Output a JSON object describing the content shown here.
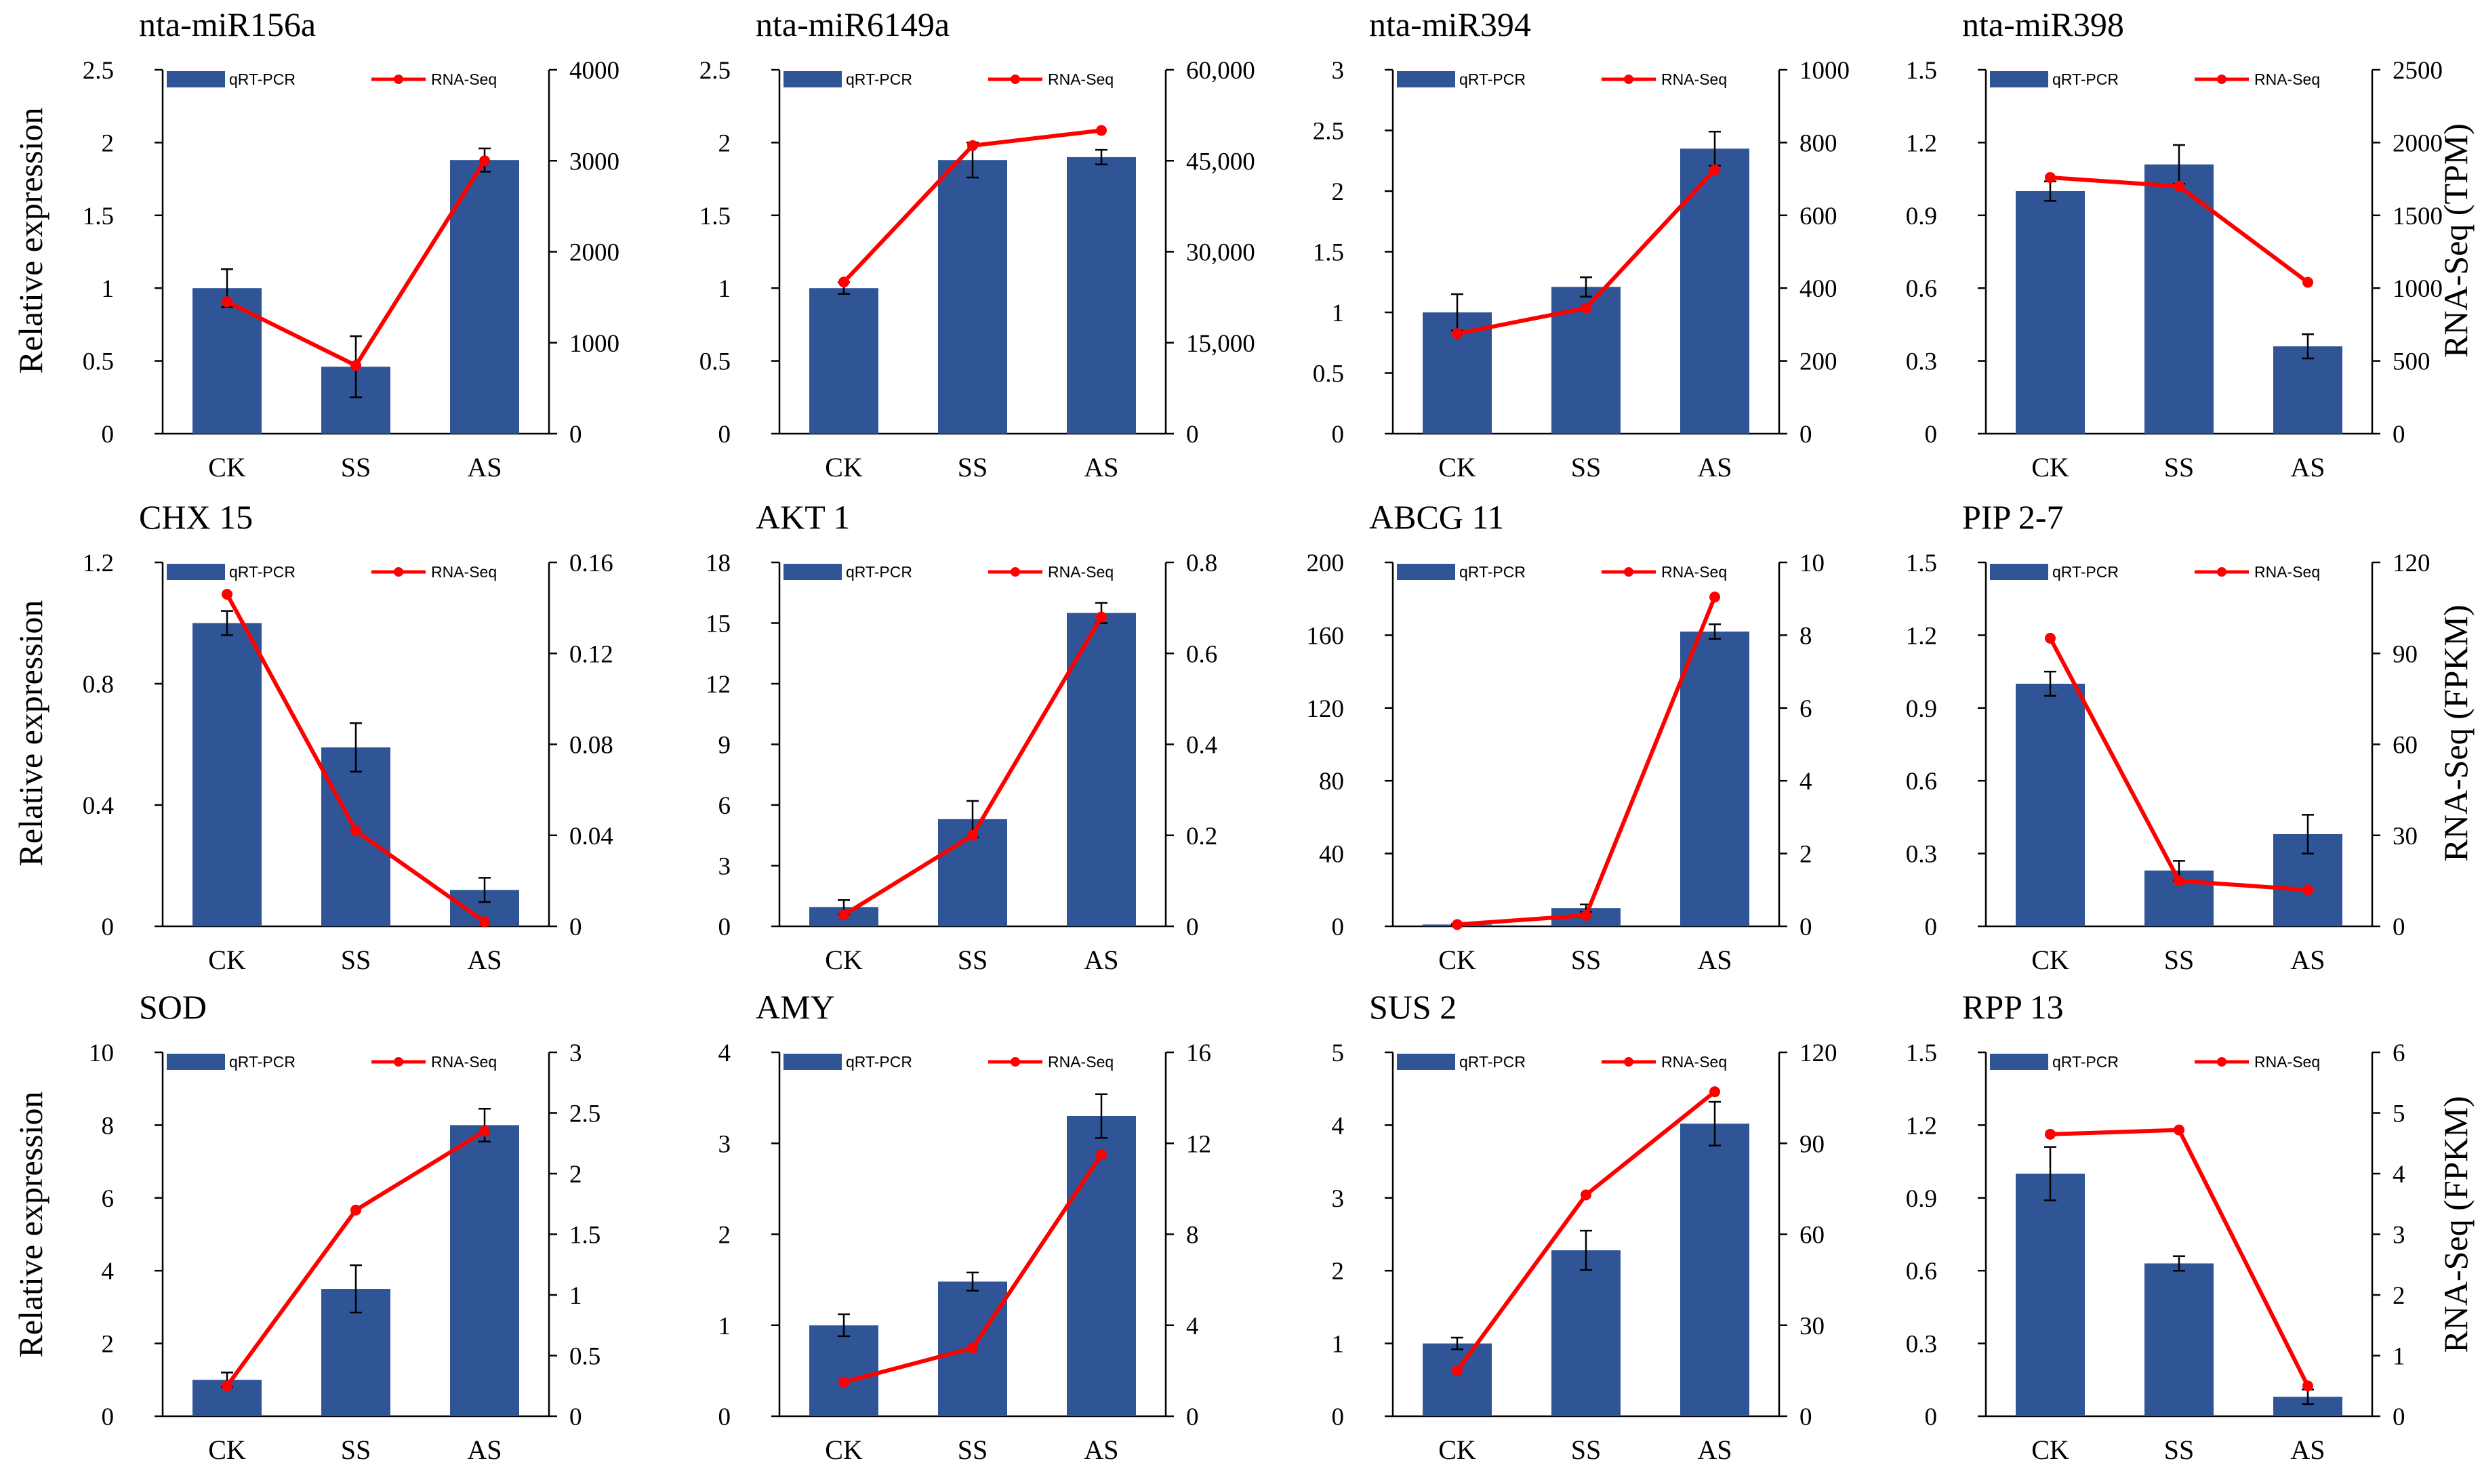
{
  "figure": {
    "categories": [
      "CK",
      "SS",
      "AS"
    ],
    "legend": {
      "bar_label": "qRT-PCR",
      "line_label": "RNA-Seq"
    },
    "colors": {
      "bar": "#2F5597",
      "line": "#FF0000"
    },
    "left_axis_label": "Relative expression",
    "right_axis_labels": [
      "RNA-Seq (TPM)",
      "RNA-Seq (FPKM)",
      "RNA-Seq (FPKM)"
    ]
  },
  "chart_data": [
    {
      "type": "bar",
      "title": "nta-miR156a",
      "categories": [
        "CK",
        "SS",
        "AS"
      ],
      "series": [
        {
          "name": "qRT-PCR",
          "axis": "left",
          "values": [
            1.0,
            0.46,
            1.88
          ],
          "errors": [
            0.13,
            0.21,
            0.08
          ]
        },
        {
          "name": "RNA-Seq",
          "axis": "right",
          "type": "line",
          "values": [
            1450,
            750,
            3000
          ]
        }
      ],
      "ylim_left": [
        0,
        2.5
      ],
      "yticks_left": [
        0,
        0.5,
        1,
        1.5,
        2,
        2.5
      ],
      "yticks_left_labels": [
        "0",
        "0.5",
        "1",
        "1.5",
        "2",
        "2.5"
      ],
      "ylim_right": [
        0,
        4000
      ],
      "yticks_right": [
        0,
        1000,
        2000,
        3000,
        4000
      ],
      "yticks_right_labels": [
        "0",
        "1000",
        "2000",
        "3000",
        "4000"
      ]
    },
    {
      "type": "bar",
      "title": "nta-miR6149a",
      "categories": [
        "CK",
        "SS",
        "AS"
      ],
      "series": [
        {
          "name": "qRT-PCR",
          "axis": "left",
          "values": [
            1.0,
            1.88,
            1.9
          ],
          "errors": [
            0.04,
            0.12,
            0.05
          ]
        },
        {
          "name": "RNA-Seq",
          "axis": "right",
          "type": "line",
          "values": [
            25000,
            47500,
            50000
          ]
        }
      ],
      "ylim_left": [
        0,
        2.5
      ],
      "yticks_left": [
        0,
        0.5,
        1,
        1.5,
        2,
        2.5
      ],
      "yticks_left_labels": [
        "0",
        "0.5",
        "1",
        "1.5",
        "2",
        "2.5"
      ],
      "ylim_right": [
        0,
        60000
      ],
      "yticks_right": [
        0,
        15000,
        30000,
        45000,
        60000
      ],
      "yticks_right_labels": [
        "0",
        "15,000",
        "30,000",
        "45,000",
        "60,000"
      ]
    },
    {
      "type": "bar",
      "title": "nta-miR394",
      "categories": [
        "CK",
        "SS",
        "AS"
      ],
      "series": [
        {
          "name": "qRT-PCR",
          "axis": "left",
          "values": [
            1.0,
            1.21,
            2.35
          ],
          "errors": [
            0.15,
            0.08,
            0.14
          ]
        },
        {
          "name": "RNA-Seq",
          "axis": "right",
          "type": "line",
          "values": [
            275,
            345,
            725
          ]
        }
      ],
      "ylim_left": [
        0,
        3
      ],
      "yticks_left": [
        0,
        0.5,
        1,
        1.5,
        2,
        2.5,
        3
      ],
      "yticks_left_labels": [
        "0",
        "0.5",
        "1",
        "1.5",
        "2",
        "2.5",
        "3"
      ],
      "ylim_right": [
        0,
        1000
      ],
      "yticks_right": [
        0,
        200,
        400,
        600,
        800,
        1000
      ],
      "yticks_right_labels": [
        "0",
        "200",
        "400",
        "600",
        "800",
        "1000"
      ]
    },
    {
      "type": "bar",
      "title": "nta-miR398",
      "categories": [
        "CK",
        "SS",
        "AS"
      ],
      "series": [
        {
          "name": "qRT-PCR",
          "axis": "left",
          "values": [
            1.0,
            1.11,
            0.36
          ],
          "errors": [
            0.04,
            0.08,
            0.05
          ]
        },
        {
          "name": "RNA-Seq",
          "axis": "right",
          "type": "line",
          "values": [
            1760,
            1700,
            1040
          ]
        }
      ],
      "ylim_left": [
        0,
        1.5
      ],
      "yticks_left": [
        0,
        0.3,
        0.6,
        0.9,
        1.2,
        1.5
      ],
      "yticks_left_labels": [
        "0",
        "0.3",
        "0.6",
        "0.9",
        "1.2",
        "1.5"
      ],
      "ylim_right": [
        0,
        2500
      ],
      "yticks_right": [
        0,
        500,
        1000,
        1500,
        2000,
        2500
      ],
      "yticks_right_labels": [
        "0",
        "500",
        "1000",
        "1500",
        "2000",
        "2500"
      ]
    },
    {
      "type": "bar",
      "title": "CHX 15",
      "categories": [
        "CK",
        "SS",
        "AS"
      ],
      "series": [
        {
          "name": "qRT-PCR",
          "axis": "left",
          "values": [
            1.0,
            0.59,
            0.12
          ],
          "errors": [
            0.04,
            0.08,
            0.04
          ]
        },
        {
          "name": "RNA-Seq",
          "axis": "right",
          "type": "line",
          "values": [
            0.146,
            0.042,
            0.002
          ]
        }
      ],
      "ylim_left": [
        0,
        1.2
      ],
      "yticks_left": [
        0,
        0.4,
        0.8,
        1.2
      ],
      "yticks_left_labels": [
        "0",
        "0.4",
        "0.8",
        "1.2"
      ],
      "ylim_right": [
        0,
        0.16
      ],
      "yticks_right": [
        0,
        0.04,
        0.08,
        0.12,
        0.16
      ],
      "yticks_right_labels": [
        "0",
        "0.04",
        "0.08",
        "0.12",
        "0.16"
      ]
    },
    {
      "type": "bar",
      "title": "AKT 1",
      "categories": [
        "CK",
        "SS",
        "AS"
      ],
      "series": [
        {
          "name": "qRT-PCR",
          "axis": "left",
          "values": [
            0.95,
            5.3,
            15.5
          ],
          "errors": [
            0.35,
            0.9,
            0.5
          ]
        },
        {
          "name": "RNA-Seq",
          "axis": "right",
          "type": "line",
          "values": [
            0.025,
            0.2,
            0.68
          ]
        }
      ],
      "ylim_left": [
        0,
        18
      ],
      "yticks_left": [
        0,
        3,
        6,
        9,
        12,
        15,
        18
      ],
      "yticks_left_labels": [
        "0",
        "3",
        "6",
        "9",
        "12",
        "15",
        "18"
      ],
      "ylim_right": [
        0,
        0.8
      ],
      "yticks_right": [
        0,
        0.2,
        0.4,
        0.6,
        0.8
      ],
      "yticks_right_labels": [
        "0",
        "0.2",
        "0.4",
        "0.6",
        "0.8"
      ]
    },
    {
      "type": "bar",
      "title": "ABCG 11",
      "categories": [
        "CK",
        "SS",
        "AS"
      ],
      "series": [
        {
          "name": "qRT-PCR",
          "axis": "left",
          "values": [
            1.0,
            10.0,
            162
          ],
          "errors": [
            0.3,
            2.0,
            4.0
          ]
        },
        {
          "name": "RNA-Seq",
          "axis": "right",
          "type": "line",
          "values": [
            0.05,
            0.3,
            9.05
          ]
        }
      ],
      "ylim_left": [
        0,
        200
      ],
      "yticks_left": [
        0,
        40,
        80,
        120,
        160,
        200
      ],
      "yticks_left_labels": [
        "0",
        "40",
        "80",
        "120",
        "160",
        "200"
      ],
      "ylim_right": [
        0,
        10
      ],
      "yticks_right": [
        0,
        2,
        4,
        6,
        8,
        10
      ],
      "yticks_right_labels": [
        "0",
        "2",
        "4",
        "6",
        "8",
        "10"
      ]
    },
    {
      "type": "bar",
      "title": "PIP 2-7",
      "categories": [
        "CK",
        "SS",
        "AS"
      ],
      "series": [
        {
          "name": "qRT-PCR",
          "axis": "left",
          "values": [
            1.0,
            0.23,
            0.38
          ],
          "errors": [
            0.05,
            0.04,
            0.08
          ]
        },
        {
          "name": "RNA-Seq",
          "axis": "right",
          "type": "line",
          "values": [
            95,
            15,
            12
          ]
        }
      ],
      "ylim_left": [
        0,
        1.5
      ],
      "yticks_left": [
        0,
        0.3,
        0.6,
        0.9,
        1.2,
        1.5
      ],
      "yticks_left_labels": [
        "0",
        "0.3",
        "0.6",
        "0.9",
        "1.2",
        "1.5"
      ],
      "ylim_right": [
        0,
        120
      ],
      "yticks_right": [
        0,
        30,
        60,
        90,
        120
      ],
      "yticks_right_labels": [
        "0",
        "30",
        "60",
        "90",
        "120"
      ]
    },
    {
      "type": "bar",
      "title": "SOD",
      "categories": [
        "CK",
        "SS",
        "AS"
      ],
      "series": [
        {
          "name": "qRT-PCR",
          "axis": "left",
          "values": [
            1.0,
            3.5,
            8.0
          ],
          "errors": [
            0.2,
            0.65,
            0.45
          ]
        },
        {
          "name": "RNA-Seq",
          "axis": "right",
          "type": "line",
          "values": [
            0.25,
            1.7,
            2.35
          ]
        }
      ],
      "ylim_left": [
        0,
        10
      ],
      "yticks_left": [
        0,
        2,
        4,
        6,
        8,
        10
      ],
      "yticks_left_labels": [
        "0",
        "2",
        "4",
        "6",
        "8",
        "10"
      ],
      "ylim_right": [
        0,
        3
      ],
      "yticks_right": [
        0,
        0.5,
        1,
        1.5,
        2,
        2.5,
        3
      ],
      "yticks_right_labels": [
        "0",
        "0.5",
        "1",
        "1.5",
        "2",
        "2.5",
        "3"
      ]
    },
    {
      "type": "bar",
      "title": "AMY",
      "categories": [
        "CK",
        "SS",
        "AS"
      ],
      "series": [
        {
          "name": "qRT-PCR",
          "axis": "left",
          "values": [
            1.0,
            1.48,
            3.3
          ],
          "errors": [
            0.12,
            0.1,
            0.24
          ]
        },
        {
          "name": "RNA-Seq",
          "axis": "right",
          "type": "line",
          "values": [
            1.5,
            3.0,
            11.5
          ]
        }
      ],
      "ylim_left": [
        0,
        4
      ],
      "yticks_left": [
        0,
        1,
        2,
        3,
        4
      ],
      "yticks_left_labels": [
        "0",
        "1",
        "2",
        "3",
        "4"
      ],
      "ylim_right": [
        0,
        16
      ],
      "yticks_right": [
        0,
        4,
        8,
        12,
        16
      ],
      "yticks_right_labels": [
        "0",
        "4",
        "8",
        "12",
        "16"
      ]
    },
    {
      "type": "bar",
      "title": "SUS 2",
      "categories": [
        "CK",
        "SS",
        "AS"
      ],
      "series": [
        {
          "name": "qRT-PCR",
          "axis": "left",
          "values": [
            1.0,
            2.28,
            4.02
          ],
          "errors": [
            0.08,
            0.27,
            0.3
          ]
        },
        {
          "name": "RNA-Seq",
          "axis": "right",
          "type": "line",
          "values": [
            15,
            73,
            107
          ]
        }
      ],
      "ylim_left": [
        0,
        5
      ],
      "yticks_left": [
        0,
        1,
        2,
        3,
        4,
        5
      ],
      "yticks_left_labels": [
        "0",
        "1",
        "2",
        "3",
        "4",
        "5"
      ],
      "ylim_right": [
        0,
        120
      ],
      "yticks_right": [
        0,
        30,
        60,
        90,
        120
      ],
      "yticks_right_labels": [
        "0",
        "30",
        "60",
        "90",
        "120"
      ]
    },
    {
      "type": "bar",
      "title": "RPP 13",
      "categories": [
        "CK",
        "SS",
        "AS"
      ],
      "series": [
        {
          "name": "qRT-PCR",
          "axis": "left",
          "values": [
            1.0,
            0.63,
            0.08
          ],
          "errors": [
            0.11,
            0.03,
            0.03
          ]
        },
        {
          "name": "RNA-Seq",
          "axis": "right",
          "type": "line",
          "values": [
            4.65,
            4.72,
            0.5
          ]
        }
      ],
      "ylim_left": [
        0,
        1.5
      ],
      "yticks_left": [
        0,
        0.3,
        0.6,
        0.9,
        1.2,
        1.5
      ],
      "yticks_left_labels": [
        "0",
        "0.3",
        "0.6",
        "0.9",
        "1.2",
        "1.5"
      ],
      "ylim_right": [
        0,
        6
      ],
      "yticks_right": [
        0,
        1,
        2,
        3,
        4,
        5,
        6
      ],
      "yticks_right_labels": [
        "0",
        "1",
        "2",
        "3",
        "4",
        "5",
        "6"
      ]
    }
  ]
}
